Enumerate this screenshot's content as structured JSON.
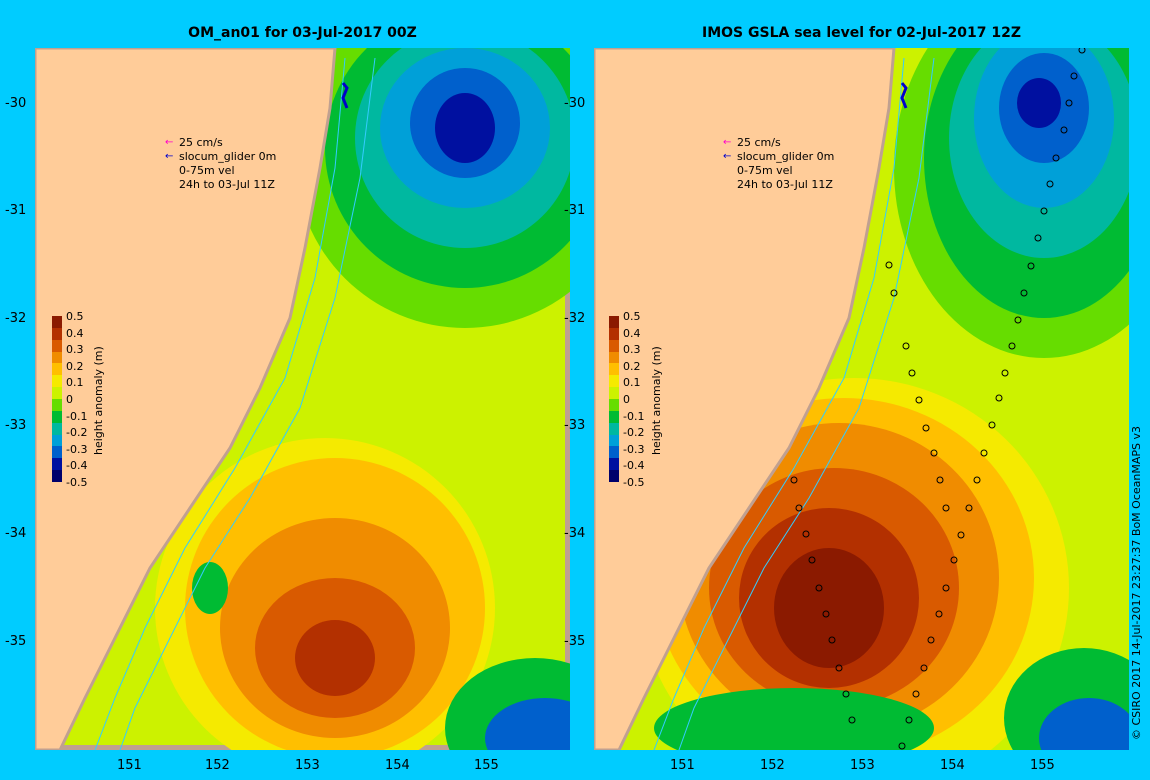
{
  "colors": {
    "background": "#00ccff",
    "land": "#ffcc99",
    "coast_shelf": "#c0a090",
    "bathymetry_contour": "#33ccff",
    "glider_track": "#0000cc",
    "arrow_magenta": "#ff00cc",
    "arrow_blue": "#0000cc"
  },
  "panels": [
    {
      "title": "OM_an01 for 03-Jul-2017 00Z",
      "legend": {
        "scale_label": "25 cm/s",
        "glider_label": "slocum_glider 0m",
        "vel_label": "0-75m vel",
        "time_label": "24h to 03-Jul 11Z"
      }
    },
    {
      "title": "IMOS GSLA sea level  for 02-Jul-2017 12Z",
      "legend": {
        "scale_label": "25 cm/s",
        "glider_label": "slocum_glider 0m",
        "vel_label": "0-75m vel",
        "time_label": "24h to 03-Jul 11Z"
      }
    }
  ],
  "axes": {
    "lat_ticks": [
      "-30",
      "-31",
      "-32",
      "-33",
      "-34",
      "-35"
    ],
    "lon_ticks": [
      "151",
      "152",
      "153",
      "154",
      "155"
    ]
  },
  "colorbar": {
    "label": "height anomaly (m)",
    "ticks": [
      "0.5",
      "0.4",
      "0.3",
      "0.2",
      "0.1",
      "0",
      "-0.1",
      "-0.2",
      "-0.3",
      "-0.4",
      "-0.5"
    ],
    "colors": [
      "#8b1a00",
      "#b33000",
      "#d95a00",
      "#f08c00",
      "#ffbf00",
      "#f5ea00",
      "#ccf200",
      "#66dd00",
      "#00bb33",
      "#00b8a0",
      "#00a0d8",
      "#0060cc",
      "#0010a0",
      "#00006b"
    ]
  },
  "credit": "© CSIRO 2017  14-Jul-2017 23:27:37 BoM OceanMAPS v3"
}
